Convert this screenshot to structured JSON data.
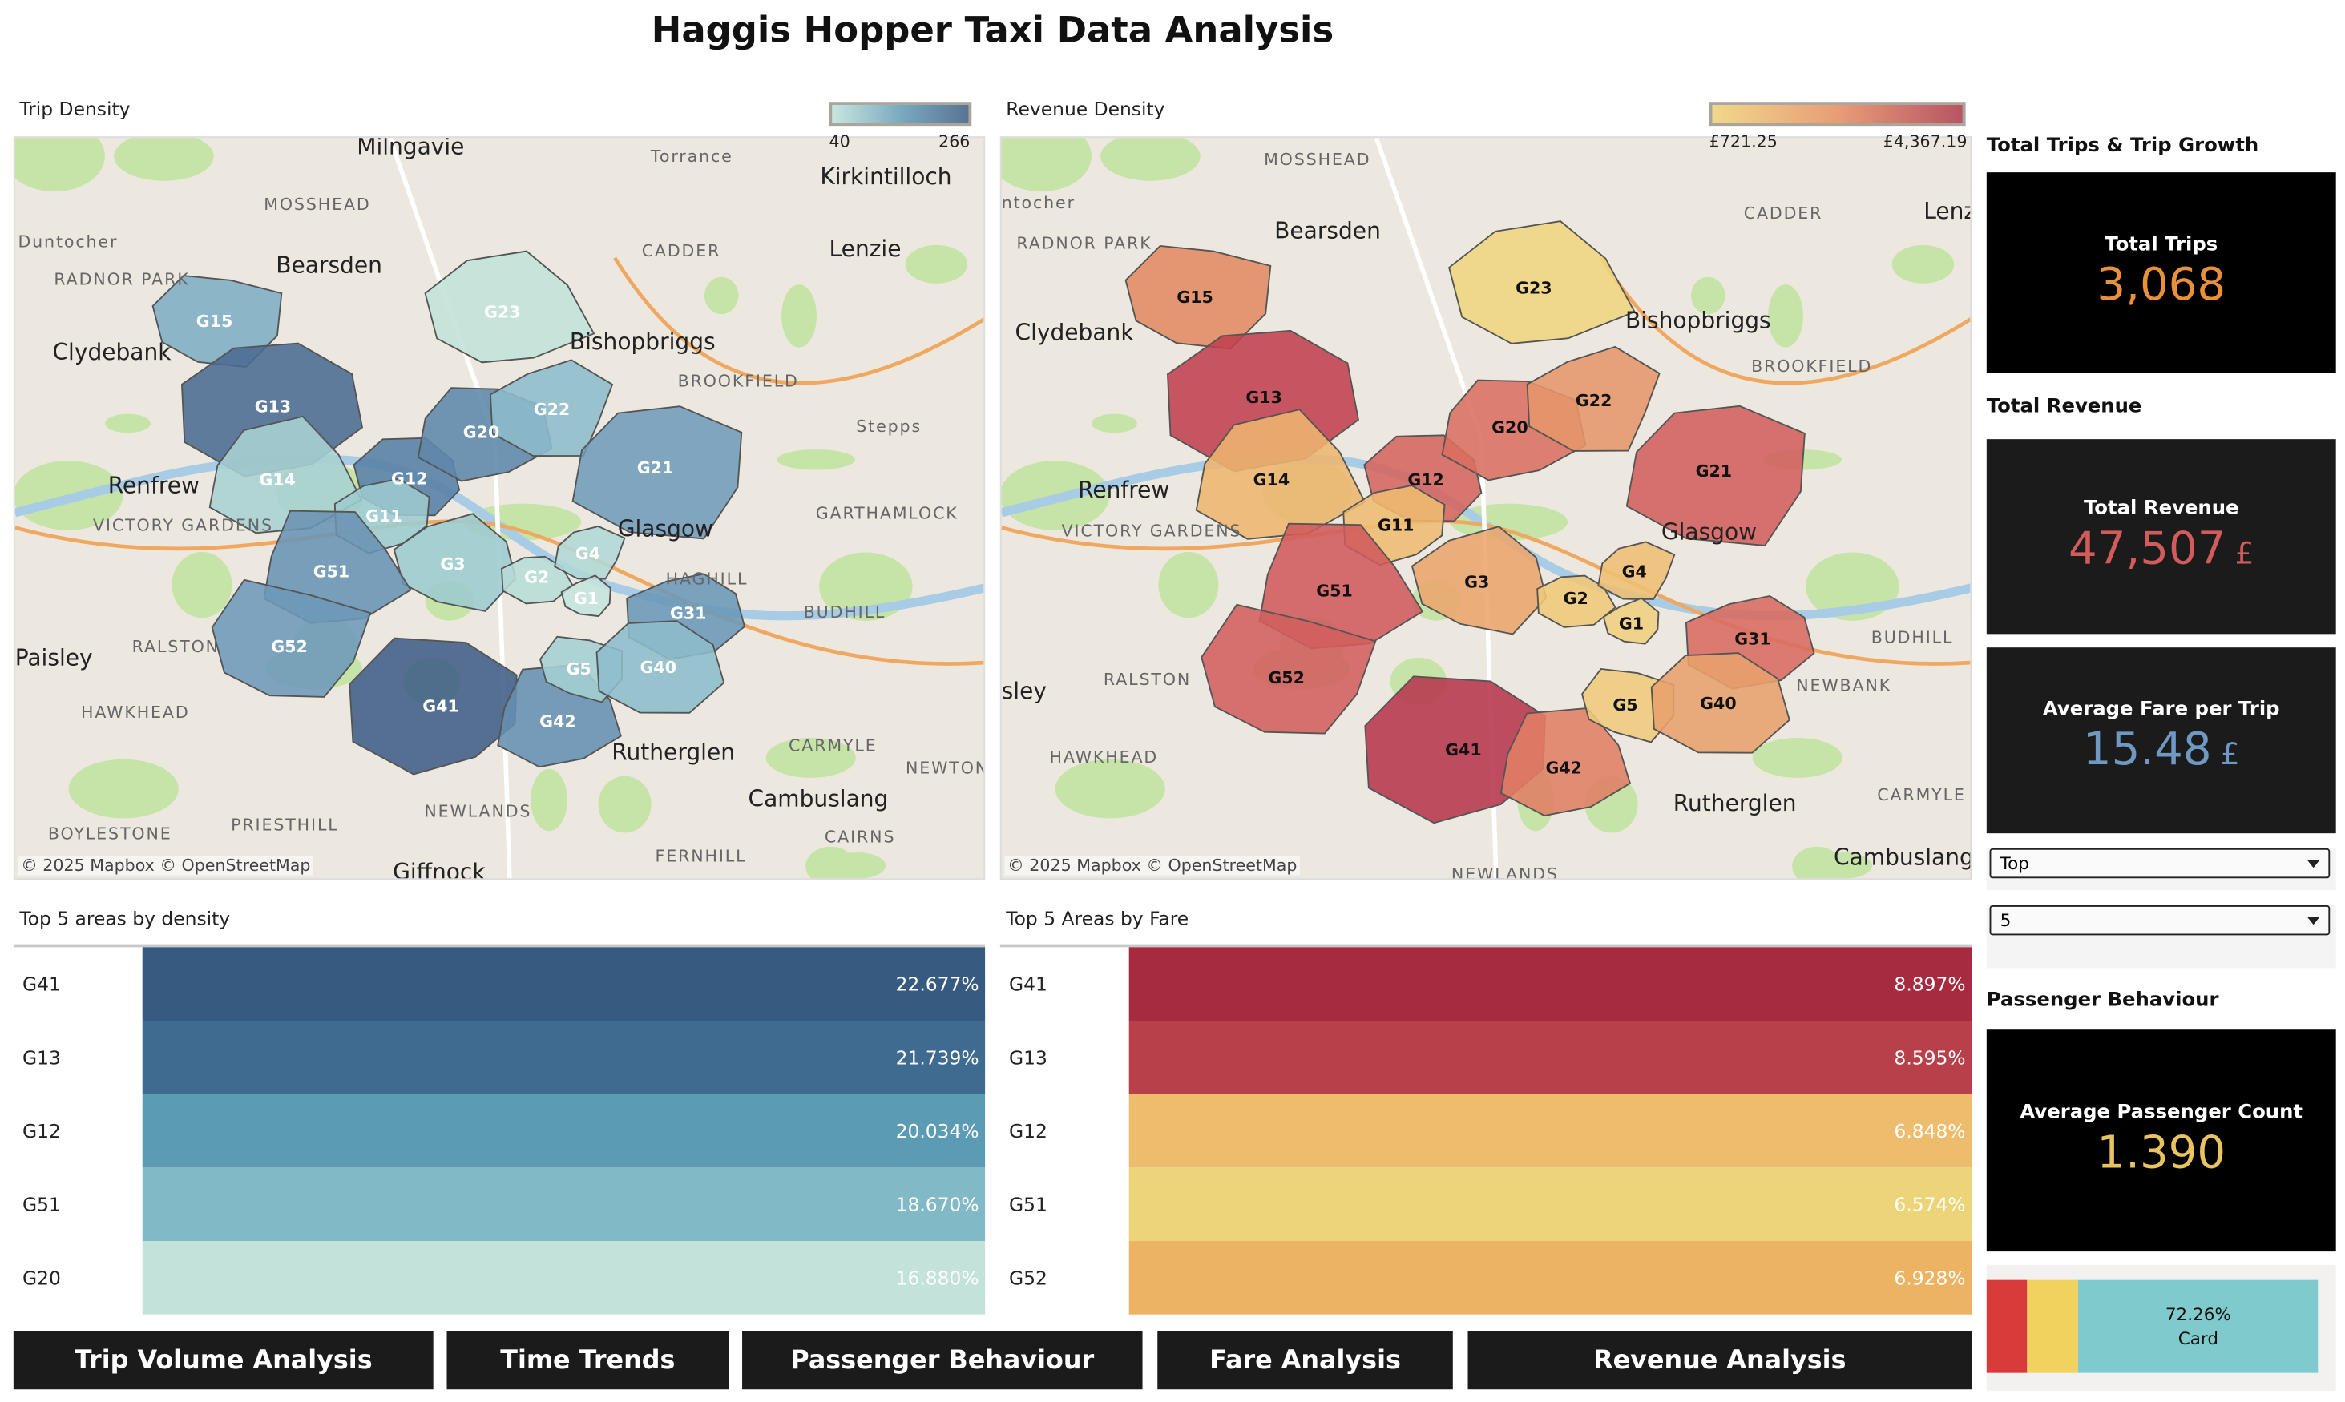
{
  "title": "Haggis Hopper Taxi Data Analysis",
  "trip_density": {
    "title": "Trip Density",
    "legend": {
      "min": "40",
      "max": "266",
      "from": "#c8e6de",
      "mid": "#7aaabf",
      "to": "#587494"
    },
    "attribution": "© 2025 Mapbox  © OpenStreetMap",
    "places": [
      {
        "t": "Milngavie",
        "big": true
      },
      {
        "t": "Torrance",
        "big": false
      },
      {
        "t": "Kirkintilloch",
        "big": true
      },
      {
        "t": "MOSSHEAD",
        "big": false
      },
      {
        "t": "Duntocher",
        "big": false
      },
      {
        "t": "Bearsden",
        "big": true
      },
      {
        "t": "CADDER",
        "big": false
      },
      {
        "t": "Lenzie",
        "big": true
      },
      {
        "t": "RADNOR PARK",
        "big": false
      },
      {
        "t": "Clydebank",
        "big": true
      },
      {
        "t": "Bishopbriggs",
        "big": true
      },
      {
        "t": "BROOKFIELD",
        "big": false
      },
      {
        "t": "Stepps",
        "big": false
      },
      {
        "t": "Renfrew",
        "big": true
      },
      {
        "t": "GARTHAMLOCK",
        "big": false
      },
      {
        "t": "VICTORY GARDENS",
        "big": false
      },
      {
        "t": "Glasgow",
        "big": true
      },
      {
        "t": "Paisley",
        "big": true
      },
      {
        "t": "RALSTON",
        "big": false
      },
      {
        "t": "BUDHILL",
        "big": false
      },
      {
        "t": "HAGHILL",
        "big": false
      },
      {
        "t": "HAWKHEAD",
        "big": false
      },
      {
        "t": "CARMYLE",
        "big": false
      },
      {
        "t": "Rutherglen",
        "big": true
      },
      {
        "t": "Cambuslang",
        "big": true
      },
      {
        "t": "NEWLANDS",
        "big": false
      },
      {
        "t": "PRIESTHILL",
        "big": false
      },
      {
        "t": "FERNHILL",
        "big": false
      },
      {
        "t": "BOYLESTONE",
        "big": false
      },
      {
        "t": "CAIRNS",
        "big": false
      },
      {
        "t": "NEWTON",
        "big": false
      },
      {
        "t": "Giffnock",
        "big": true
      }
    ],
    "zones": [
      {
        "id": "G15",
        "color": "#7fadc4"
      },
      {
        "id": "G13",
        "color": "#4a6b92"
      },
      {
        "id": "G14",
        "color": "#a9d2d3"
      },
      {
        "id": "G12",
        "color": "#5580a4"
      },
      {
        "id": "G11",
        "color": "#9ccbcf"
      },
      {
        "id": "G20",
        "color": "#5d88aa"
      },
      {
        "id": "G23",
        "color": "#c2e3da"
      },
      {
        "id": "G22",
        "color": "#8dbccc"
      },
      {
        "id": "G21",
        "color": "#6f9bba"
      },
      {
        "id": "G3",
        "color": "#9ccbcf"
      },
      {
        "id": "G2",
        "color": "#b7dcd6"
      },
      {
        "id": "G4",
        "color": "#b0d8d6"
      },
      {
        "id": "G1",
        "color": "#c4e4dc"
      },
      {
        "id": "G31",
        "color": "#6a97b7"
      },
      {
        "id": "G51",
        "color": "#6993b4"
      },
      {
        "id": "G52",
        "color": "#6d98b8"
      },
      {
        "id": "G41",
        "color": "#3f5d86"
      },
      {
        "id": "G42",
        "color": "#6590b2"
      },
      {
        "id": "G5",
        "color": "#a4cfd2"
      },
      {
        "id": "G40",
        "color": "#8dbccc"
      }
    ]
  },
  "revenue_density": {
    "title": "Revenue Density",
    "legend": {
      "min": "£721.25",
      "max": "£4,367.19",
      "from": "#f0d88a",
      "mid": "#e89d76",
      "to": "#b85464"
    },
    "attribution": "© 2025 Mapbox  © OpenStreetMap",
    "places": [
      {
        "t": "MOSSHEAD",
        "big": false
      },
      {
        "t": "ntocher",
        "big": false
      },
      {
        "t": "Bearsden",
        "big": true
      },
      {
        "t": "CADDER",
        "big": false
      },
      {
        "t": "Lenzie",
        "big": true
      },
      {
        "t": "RADNOR PARK",
        "big": false
      },
      {
        "t": "Clydebank",
        "big": true
      },
      {
        "t": "Bishopbriggs",
        "big": true
      },
      {
        "t": "BROOKFIELD",
        "big": false
      },
      {
        "t": "Renfrew",
        "big": true
      },
      {
        "t": "VICTORY GARDENS",
        "big": false
      },
      {
        "t": "Glasgow",
        "big": true
      },
      {
        "t": "sley",
        "big": true
      },
      {
        "t": "RALSTON",
        "big": false
      },
      {
        "t": "HAWKHEAD",
        "big": false
      },
      {
        "t": "Rutherglen",
        "big": true
      },
      {
        "t": "Cambuslang",
        "big": true
      },
      {
        "t": "NEWLANDS",
        "big": false
      },
      {
        "t": "CARMYLE",
        "big": false
      },
      {
        "t": "BUDHILL",
        "big": false
      },
      {
        "t": "NEWBANK",
        "big": false
      }
    ],
    "zones": [
      {
        "id": "G15",
        "color": "#e28a62"
      },
      {
        "id": "G13",
        "color": "#c0404f"
      },
      {
        "id": "G14",
        "color": "#eeb56e"
      },
      {
        "id": "G12",
        "color": "#d5645f"
      },
      {
        "id": "G11",
        "color": "#eebb70"
      },
      {
        "id": "G20",
        "color": "#da6e60"
      },
      {
        "id": "G23",
        "color": "#efd480"
      },
      {
        "id": "G22",
        "color": "#e6966a"
      },
      {
        "id": "G21",
        "color": "#d15e5e"
      },
      {
        "id": "G3",
        "color": "#eba56c"
      },
      {
        "id": "G2",
        "color": "#efc878"
      },
      {
        "id": "G4",
        "color": "#eebe72"
      },
      {
        "id": "G1",
        "color": "#f0cf7e"
      },
      {
        "id": "G31",
        "color": "#d86a60"
      },
      {
        "id": "G51",
        "color": "#d05a5c"
      },
      {
        "id": "G52",
        "color": "#d25e5d"
      },
      {
        "id": "G41",
        "color": "#b7364c"
      },
      {
        "id": "G42",
        "color": "#e07e64"
      },
      {
        "id": "G5",
        "color": "#efca7a"
      },
      {
        "id": "G40",
        "color": "#e8a06c"
      }
    ]
  },
  "top_density": {
    "title": "Top 5 areas by density",
    "rows": [
      {
        "area": "G41",
        "pct": "22.677%",
        "color": "#375a80"
      },
      {
        "area": "G13",
        "pct": "21.739%",
        "color": "#406b91"
      },
      {
        "area": "G12",
        "pct": "20.034%",
        "color": "#5b9bb4"
      },
      {
        "area": "G51",
        "pct": "18.670%",
        "color": "#82b9c6"
      },
      {
        "area": "G20",
        "pct": "16.880%",
        "color": "#c3e3da"
      }
    ]
  },
  "top_fare": {
    "title": "Top 5 Areas by Fare",
    "rows": [
      {
        "area": "G41",
        "pct": "8.897%",
        "color": "#a62b40"
      },
      {
        "area": "G13",
        "pct": "8.595%",
        "color": "#b8404a"
      },
      {
        "area": "G12",
        "pct": "6.848%",
        "color": "#edbd6d"
      },
      {
        "area": "G51",
        "pct": "6.574%",
        "color": "#edd478"
      },
      {
        "area": "G52",
        "pct": "6.928%",
        "color": "#ecb362"
      }
    ]
  },
  "kpis": {
    "trips_header": "Total Trips & Trip Growth",
    "total_trips_label": "Total Trips",
    "total_trips_value": "3,068",
    "revenue_header": "Total Revenue",
    "total_revenue_label": "Total Revenue",
    "total_revenue_value": "47,507",
    "currency": "£",
    "avg_fare_label": "Average Fare per Trip",
    "avg_fare_value": "15.48",
    "passenger_header": "Passenger Behaviour",
    "avg_passenger_label": "Average Passenger Count",
    "avg_passenger_value": "1.390"
  },
  "filters": {
    "direction": "Top",
    "count": "5"
  },
  "payment_split": {
    "segments": [
      {
        "share": 0.1225,
        "color": "#d93a3a"
      },
      {
        "share": 0.155,
        "color": "#f2d25e"
      },
      {
        "share": 0.7226,
        "color": "#7fcacc",
        "pct": "72.26%",
        "label": "Card"
      }
    ]
  },
  "nav": [
    "Trip Volume Analysis",
    "Time Trends",
    "Passenger Behaviour",
    "Fare Analysis",
    "Revenue Analysis"
  ],
  "colors": {
    "trips": "#e8913a",
    "revenue": "#d25b5b",
    "fare": "#6f98c2",
    "passenger": "#e8c35f"
  }
}
